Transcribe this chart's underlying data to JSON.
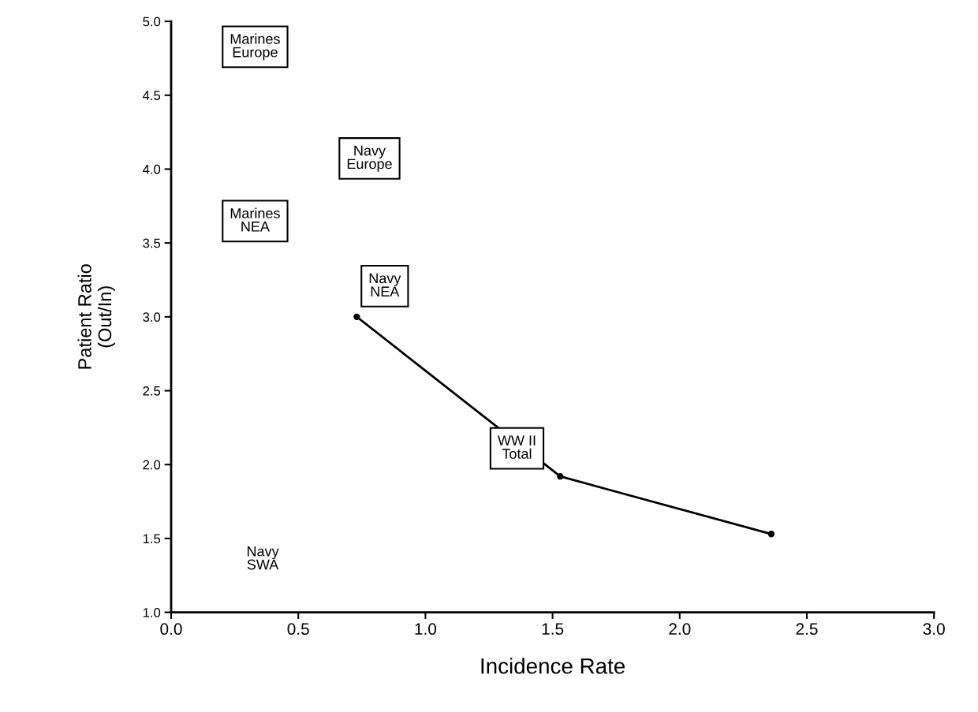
{
  "chart_data": {
    "type": "line",
    "xlabel": "Incidence Rate",
    "ylabel": "Patient Ratio\n(Out/In)",
    "x": [
      0.73,
      1.53,
      2.36
    ],
    "series": [
      {
        "color": "#000000",
        "values": [
          3.0,
          1.92,
          1.53
        ]
      }
    ],
    "marker": "circle",
    "line_style": "solid",
    "grid": false,
    "xlim": [
      0.0,
      3.0
    ],
    "xticks": [
      {
        "value": 0,
        "label": "0.0"
      },
      0.5,
      {
        "value": 1,
        "label": "1.0"
      },
      1.5,
      {
        "value": 2,
        "label": "2.0"
      },
      2.5,
      {
        "value": 3,
        "label": "3.0"
      }
    ],
    "ylim": [
      1.0,
      5.0
    ],
    "yticks": [
      {
        "value": 1,
        "label": "1.0"
      },
      1.5,
      {
        "value": 2,
        "label": "2.0"
      },
      2.5,
      {
        "value": 3,
        "label": "3.0"
      },
      3.5,
      {
        "value": 4,
        "label": "4.0"
      },
      4.5,
      {
        "value": 5,
        "label": "5.0"
      }
    ],
    "annotations": [
      "Marines\nEurope",
      "Navy\nEurope",
      "Marines\nNEA",
      "Navy\nNEA",
      {
        "text": "WW II\nTotal",
        "x": 1.36,
        "y": 2.11
      },
      "Navy\nSWA"
    ]
  }
}
